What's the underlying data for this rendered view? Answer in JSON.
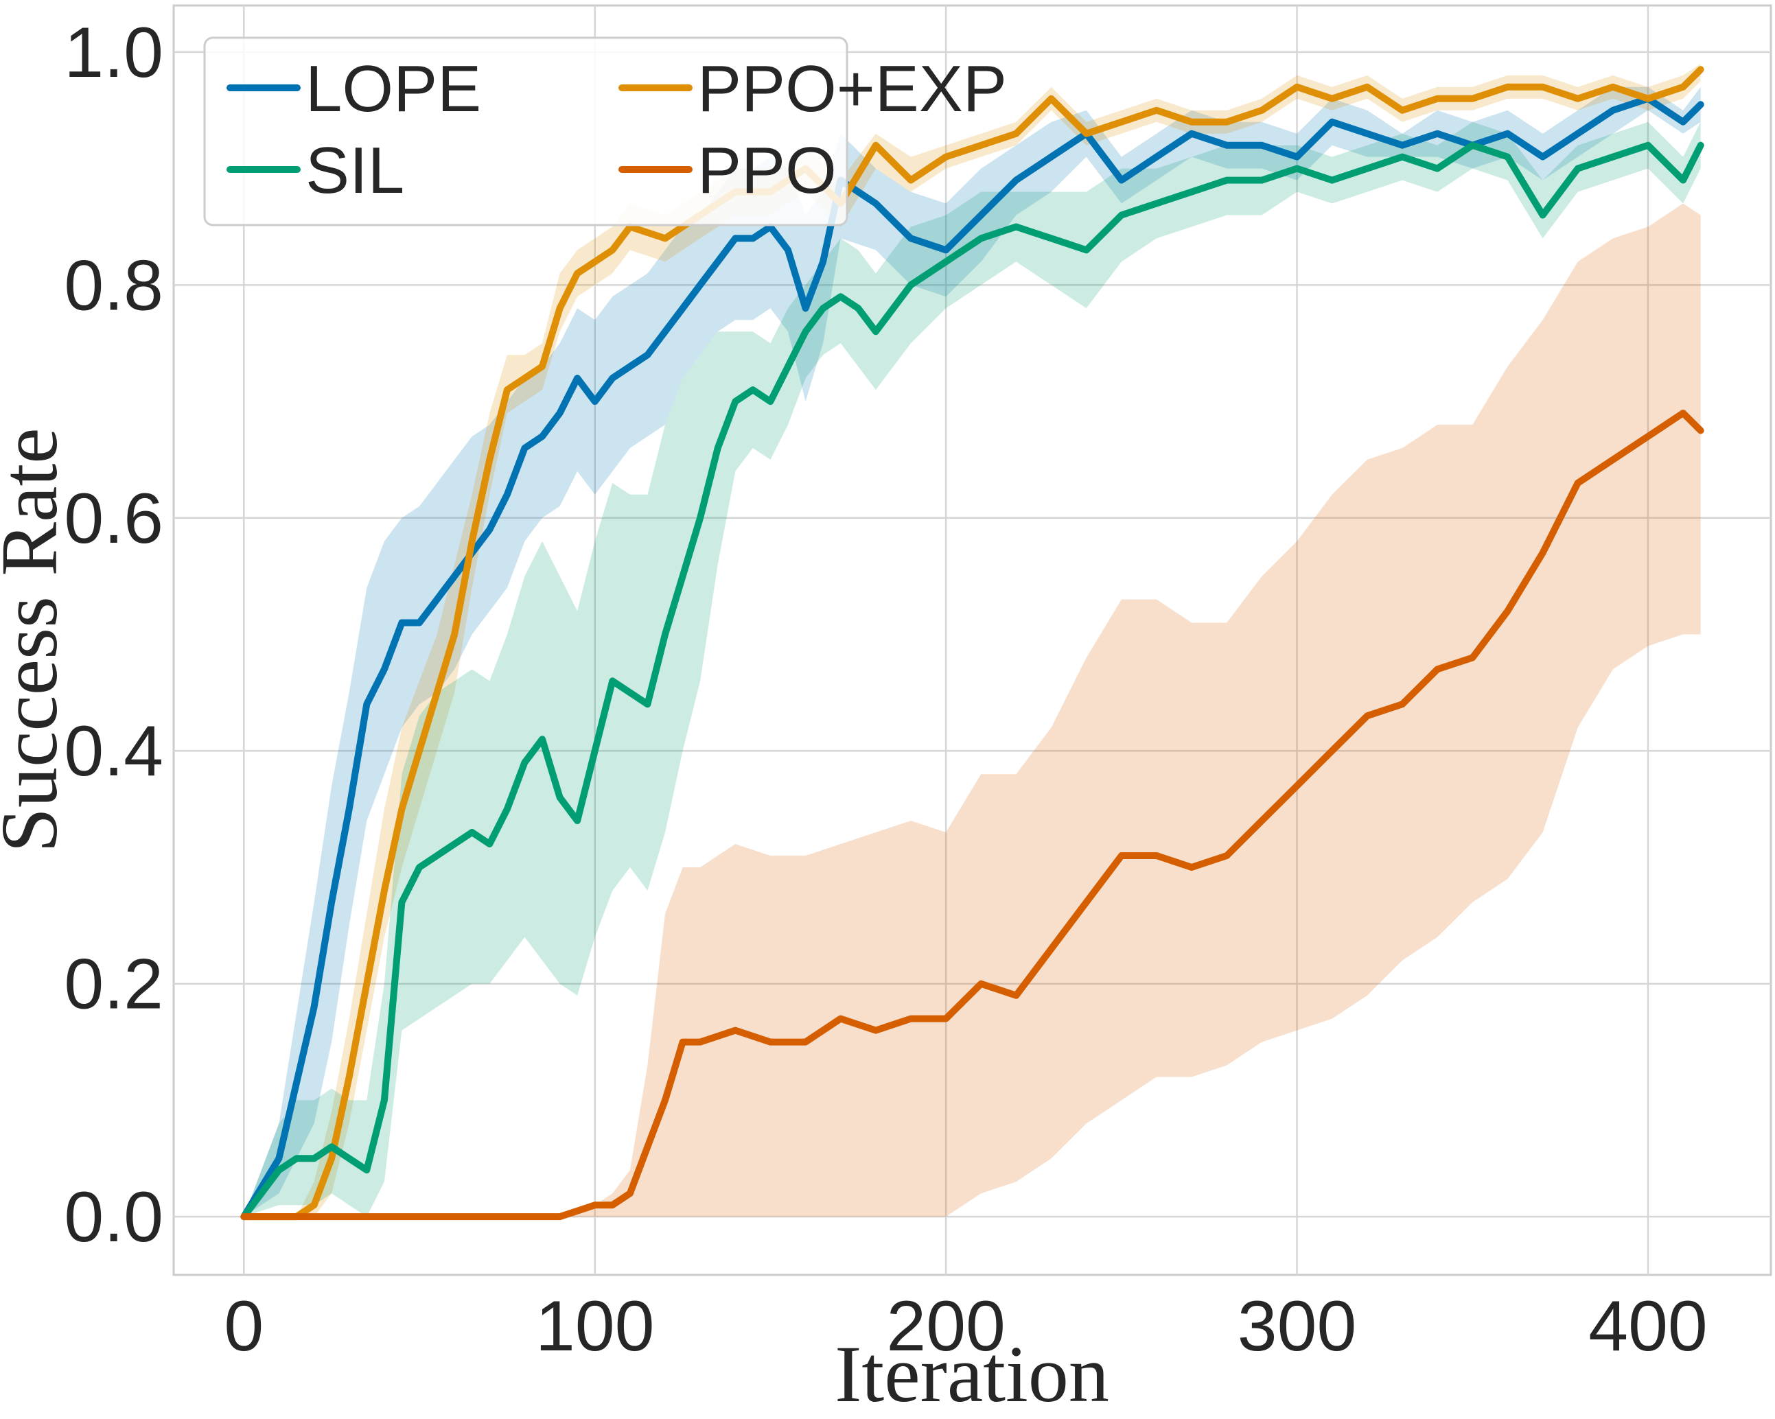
{
  "chart_data": {
    "type": "line",
    "xlabel": "Iteration",
    "ylabel": "Success Rate",
    "xlim": [
      -20,
      435
    ],
    "ylim": [
      -0.05,
      1.04
    ],
    "xticks": [
      0,
      100,
      200,
      300,
      400
    ],
    "xtick_labels": [
      "0",
      "100",
      "200",
      "300",
      "400"
    ],
    "yticks": [
      0.0,
      0.2,
      0.4,
      0.6,
      0.8,
      1.0
    ],
    "ytick_labels": [
      "0.0",
      "0.2",
      "0.4",
      "0.6",
      "0.8",
      "1.0"
    ],
    "grid": true,
    "legend_position": "top-left",
    "legend_columns": 2,
    "series": [
      {
        "name": "LOPE",
        "color": "#0173b2",
        "x": [
          0,
          10,
          20,
          25,
          30,
          35,
          40,
          45,
          50,
          55,
          60,
          65,
          70,
          75,
          80,
          85,
          90,
          95,
          100,
          105,
          110,
          115,
          120,
          125,
          130,
          135,
          140,
          145,
          150,
          155,
          160,
          165,
          170,
          180,
          190,
          200,
          210,
          220,
          230,
          240,
          250,
          260,
          270,
          280,
          290,
          300,
          310,
          320,
          330,
          340,
          350,
          360,
          370,
          380,
          390,
          400,
          410,
          415
        ],
        "values": [
          0.0,
          0.05,
          0.18,
          0.27,
          0.35,
          0.44,
          0.47,
          0.51,
          0.51,
          0.53,
          0.55,
          0.57,
          0.59,
          0.62,
          0.66,
          0.67,
          0.69,
          0.72,
          0.7,
          0.72,
          0.73,
          0.74,
          0.76,
          0.78,
          0.8,
          0.82,
          0.84,
          0.84,
          0.85,
          0.83,
          0.78,
          0.82,
          0.89,
          0.87,
          0.84,
          0.83,
          0.86,
          0.89,
          0.91,
          0.93,
          0.89,
          0.91,
          0.93,
          0.92,
          0.92,
          0.91,
          0.94,
          0.93,
          0.92,
          0.93,
          0.92,
          0.93,
          0.91,
          0.93,
          0.95,
          0.96,
          0.94,
          0.955
        ],
        "lower": [
          0.0,
          0.02,
          0.08,
          0.15,
          0.25,
          0.34,
          0.38,
          0.42,
          0.44,
          0.45,
          0.47,
          0.5,
          0.52,
          0.54,
          0.58,
          0.6,
          0.61,
          0.64,
          0.62,
          0.64,
          0.66,
          0.67,
          0.68,
          0.72,
          0.74,
          0.76,
          0.77,
          0.77,
          0.78,
          0.76,
          0.7,
          0.75,
          0.84,
          0.83,
          0.8,
          0.79,
          0.82,
          0.86,
          0.88,
          0.91,
          0.87,
          0.89,
          0.91,
          0.9,
          0.9,
          0.89,
          0.92,
          0.91,
          0.91,
          0.91,
          0.9,
          0.91,
          0.89,
          0.91,
          0.93,
          0.95,
          0.93,
          0.94
        ],
        "upper": [
          0.0,
          0.08,
          0.27,
          0.37,
          0.45,
          0.54,
          0.58,
          0.6,
          0.61,
          0.63,
          0.65,
          0.67,
          0.68,
          0.7,
          0.72,
          0.73,
          0.75,
          0.78,
          0.77,
          0.79,
          0.8,
          0.81,
          0.83,
          0.85,
          0.86,
          0.88,
          0.9,
          0.9,
          0.91,
          0.9,
          0.86,
          0.88,
          0.93,
          0.9,
          0.88,
          0.87,
          0.9,
          0.92,
          0.94,
          0.95,
          0.91,
          0.93,
          0.95,
          0.94,
          0.94,
          0.93,
          0.96,
          0.95,
          0.93,
          0.95,
          0.94,
          0.95,
          0.93,
          0.95,
          0.97,
          0.97,
          0.95,
          0.97
        ]
      },
      {
        "name": "PPO+EXP",
        "color": "#de8f05",
        "x": [
          0,
          10,
          15,
          20,
          25,
          30,
          35,
          40,
          45,
          50,
          55,
          60,
          65,
          70,
          75,
          80,
          85,
          90,
          95,
          100,
          105,
          110,
          120,
          130,
          140,
          150,
          160,
          170,
          180,
          190,
          200,
          210,
          220,
          230,
          240,
          250,
          260,
          270,
          280,
          290,
          300,
          310,
          320,
          330,
          340,
          350,
          360,
          370,
          380,
          390,
          400,
          410,
          415
        ],
        "values": [
          0.0,
          0.0,
          0.0,
          0.01,
          0.05,
          0.12,
          0.2,
          0.28,
          0.35,
          0.4,
          0.45,
          0.5,
          0.58,
          0.65,
          0.71,
          0.72,
          0.73,
          0.78,
          0.81,
          0.82,
          0.83,
          0.85,
          0.84,
          0.86,
          0.88,
          0.88,
          0.9,
          0.87,
          0.92,
          0.89,
          0.91,
          0.92,
          0.93,
          0.96,
          0.93,
          0.94,
          0.95,
          0.94,
          0.94,
          0.95,
          0.97,
          0.96,
          0.97,
          0.95,
          0.96,
          0.96,
          0.97,
          0.97,
          0.96,
          0.97,
          0.96,
          0.97,
          0.985
        ],
        "lower": [
          0.0,
          0.0,
          0.0,
          0.0,
          0.02,
          0.08,
          0.16,
          0.24,
          0.3,
          0.35,
          0.4,
          0.45,
          0.54,
          0.62,
          0.69,
          0.7,
          0.71,
          0.76,
          0.79,
          0.8,
          0.81,
          0.83,
          0.82,
          0.84,
          0.86,
          0.86,
          0.88,
          0.85,
          0.9,
          0.88,
          0.9,
          0.91,
          0.92,
          0.95,
          0.92,
          0.93,
          0.94,
          0.93,
          0.93,
          0.94,
          0.96,
          0.95,
          0.96,
          0.94,
          0.95,
          0.95,
          0.96,
          0.96,
          0.95,
          0.96,
          0.95,
          0.96,
          0.975
        ],
        "upper": [
          0.0,
          0.0,
          0.0,
          0.03,
          0.09,
          0.17,
          0.26,
          0.35,
          0.42,
          0.46,
          0.5,
          0.56,
          0.62,
          0.69,
          0.74,
          0.74,
          0.75,
          0.81,
          0.83,
          0.84,
          0.85,
          0.87,
          0.86,
          0.88,
          0.9,
          0.9,
          0.92,
          0.89,
          0.93,
          0.91,
          0.92,
          0.93,
          0.94,
          0.97,
          0.94,
          0.95,
          0.96,
          0.95,
          0.95,
          0.96,
          0.98,
          0.97,
          0.98,
          0.96,
          0.97,
          0.97,
          0.98,
          0.98,
          0.97,
          0.98,
          0.97,
          0.98,
          0.99
        ]
      },
      {
        "name": "SIL",
        "color": "#029e73",
        "x": [
          0,
          10,
          15,
          20,
          25,
          30,
          35,
          40,
          45,
          50,
          55,
          60,
          65,
          70,
          75,
          80,
          85,
          90,
          95,
          100,
          105,
          110,
          115,
          120,
          125,
          130,
          135,
          140,
          145,
          150,
          155,
          160,
          165,
          170,
          175,
          180,
          190,
          200,
          210,
          220,
          230,
          240,
          250,
          260,
          270,
          280,
          290,
          300,
          310,
          320,
          330,
          340,
          350,
          360,
          370,
          380,
          390,
          400,
          410,
          415
        ],
        "values": [
          0.0,
          0.04,
          0.05,
          0.05,
          0.06,
          0.05,
          0.04,
          0.1,
          0.27,
          0.3,
          0.31,
          0.32,
          0.33,
          0.32,
          0.35,
          0.39,
          0.41,
          0.36,
          0.34,
          0.4,
          0.46,
          0.45,
          0.44,
          0.5,
          0.55,
          0.6,
          0.66,
          0.7,
          0.71,
          0.7,
          0.73,
          0.76,
          0.78,
          0.79,
          0.78,
          0.76,
          0.8,
          0.82,
          0.84,
          0.85,
          0.84,
          0.83,
          0.86,
          0.87,
          0.88,
          0.89,
          0.89,
          0.9,
          0.89,
          0.9,
          0.91,
          0.9,
          0.92,
          0.91,
          0.86,
          0.9,
          0.91,
          0.92,
          0.89,
          0.92
        ],
        "lower": [
          0.0,
          0.01,
          0.01,
          0.01,
          0.02,
          0.01,
          0.0,
          0.03,
          0.16,
          0.17,
          0.18,
          0.19,
          0.2,
          0.2,
          0.22,
          0.24,
          0.22,
          0.2,
          0.19,
          0.24,
          0.28,
          0.3,
          0.28,
          0.33,
          0.4,
          0.46,
          0.56,
          0.64,
          0.66,
          0.65,
          0.68,
          0.72,
          0.74,
          0.75,
          0.73,
          0.71,
          0.75,
          0.78,
          0.8,
          0.82,
          0.8,
          0.78,
          0.82,
          0.84,
          0.85,
          0.86,
          0.86,
          0.88,
          0.87,
          0.88,
          0.89,
          0.88,
          0.9,
          0.89,
          0.84,
          0.88,
          0.89,
          0.9,
          0.87,
          0.9
        ],
        "upper": [
          0.0,
          0.08,
          0.1,
          0.1,
          0.11,
          0.1,
          0.1,
          0.2,
          0.38,
          0.43,
          0.45,
          0.46,
          0.47,
          0.46,
          0.5,
          0.55,
          0.58,
          0.55,
          0.52,
          0.58,
          0.63,
          0.62,
          0.62,
          0.68,
          0.72,
          0.74,
          0.76,
          0.76,
          0.76,
          0.75,
          0.78,
          0.8,
          0.82,
          0.84,
          0.83,
          0.81,
          0.85,
          0.86,
          0.88,
          0.88,
          0.88,
          0.88,
          0.9,
          0.9,
          0.91,
          0.92,
          0.92,
          0.92,
          0.91,
          0.92,
          0.93,
          0.92,
          0.94,
          0.93,
          0.89,
          0.92,
          0.93,
          0.94,
          0.91,
          0.94
        ]
      },
      {
        "name": "PPO",
        "color": "#d55e00",
        "x": [
          0,
          20,
          40,
          60,
          80,
          90,
          95,
          100,
          105,
          110,
          115,
          120,
          125,
          130,
          140,
          150,
          160,
          170,
          180,
          190,
          200,
          210,
          220,
          230,
          240,
          250,
          260,
          270,
          280,
          290,
          300,
          310,
          320,
          330,
          340,
          350,
          360,
          370,
          380,
          390,
          400,
          410,
          415
        ],
        "values": [
          0.0,
          0.0,
          0.0,
          0.0,
          0.0,
          0.0,
          0.005,
          0.01,
          0.01,
          0.02,
          0.06,
          0.1,
          0.15,
          0.15,
          0.16,
          0.15,
          0.15,
          0.17,
          0.16,
          0.17,
          0.17,
          0.2,
          0.19,
          0.23,
          0.27,
          0.31,
          0.31,
          0.3,
          0.31,
          0.34,
          0.37,
          0.4,
          0.43,
          0.44,
          0.47,
          0.48,
          0.52,
          0.57,
          0.63,
          0.65,
          0.67,
          0.69,
          0.675
        ],
        "lower": [
          0.0,
          0.0,
          0.0,
          0.0,
          0.0,
          0.0,
          0.0,
          0.0,
          0.0,
          0.0,
          0.0,
          0.0,
          0.0,
          0.0,
          0.0,
          0.0,
          0.0,
          0.0,
          0.0,
          0.0,
          0.0,
          0.02,
          0.03,
          0.05,
          0.08,
          0.1,
          0.12,
          0.12,
          0.13,
          0.15,
          0.16,
          0.17,
          0.19,
          0.22,
          0.24,
          0.27,
          0.29,
          0.33,
          0.42,
          0.47,
          0.49,
          0.5,
          0.5
        ],
        "upper": [
          0.0,
          0.0,
          0.0,
          0.0,
          0.0,
          0.0,
          0.005,
          0.01,
          0.02,
          0.04,
          0.13,
          0.26,
          0.3,
          0.3,
          0.32,
          0.31,
          0.31,
          0.32,
          0.33,
          0.34,
          0.33,
          0.38,
          0.38,
          0.42,
          0.48,
          0.53,
          0.53,
          0.51,
          0.51,
          0.55,
          0.58,
          0.62,
          0.65,
          0.66,
          0.68,
          0.68,
          0.73,
          0.77,
          0.82,
          0.84,
          0.85,
          0.87,
          0.86
        ]
      }
    ]
  }
}
